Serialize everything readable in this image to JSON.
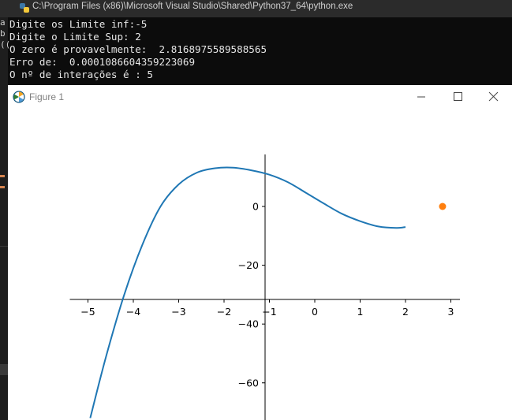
{
  "console": {
    "title": "C:\\Program Files (x86)\\Microsoft Visual Studio\\Shared\\Python37_64\\python.exe",
    "lines": [
      "Digite os Limite inf:-5",
      "Digite o Limite Sup: 2",
      "O zero é provavelmente:  2.8168975589588565",
      "Erro de:  0.0001086604359223069",
      "O nº de interações é : 5"
    ]
  },
  "ide_fragments": [
    "a",
    "b",
    "(("
  ],
  "figure": {
    "title": "Figure 1",
    "buttons": {
      "minimize": "minimize",
      "maximize": "maximize",
      "close": "close"
    }
  },
  "colors": {
    "curve": "#1f77b4",
    "root_marker": "#ff7f0e",
    "console_bg": "#0c0c0c",
    "console_text": "#e6e6e6"
  },
  "chart_data": {
    "type": "line",
    "title": "",
    "xlabel": "",
    "ylabel": "",
    "xlim": [
      -5.4,
      3.2
    ],
    "ylim": [
      -72,
      18
    ],
    "x_ticks": [
      -5,
      -4,
      -3,
      -2,
      -1,
      0,
      1,
      2,
      3
    ],
    "x_tick_labels": [
      "−5",
      "−4",
      "−3",
      "−2",
      "−1",
      "0",
      "1",
      "2",
      "3"
    ],
    "y_ticks": [
      0,
      -20,
      -40,
      -60
    ],
    "y_tick_labels": [
      "0",
      "−20",
      "−40",
      "−60"
    ],
    "spines": "centered at origin (x axis at y=-31.5 display, y axis at x=-1)",
    "series": [
      {
        "name": "",
        "kind": "line",
        "color": "#1f77b4",
        "x": [
          -4.95,
          -4.6,
          -4.2,
          -3.8,
          -3.4,
          -3.0,
          -2.6,
          -2.2,
          -1.8,
          -1.4,
          -1.0,
          -0.6,
          -0.2,
          0.2,
          0.6,
          1.0,
          1.4,
          1.8,
          2.0
        ],
        "y": [
          -72,
          -51,
          -30,
          -13,
          0,
          7.5,
          11.5,
          13,
          13.2,
          12.3,
          10.8,
          8.3,
          4.7,
          1,
          -2.5,
          -5,
          -6.8,
          -7.3,
          -7
        ]
      },
      {
        "name": "",
        "kind": "scatter",
        "color": "#ff7f0e",
        "x": [
          2.8168975589588565
        ],
        "y": [
          0
        ]
      }
    ]
  }
}
